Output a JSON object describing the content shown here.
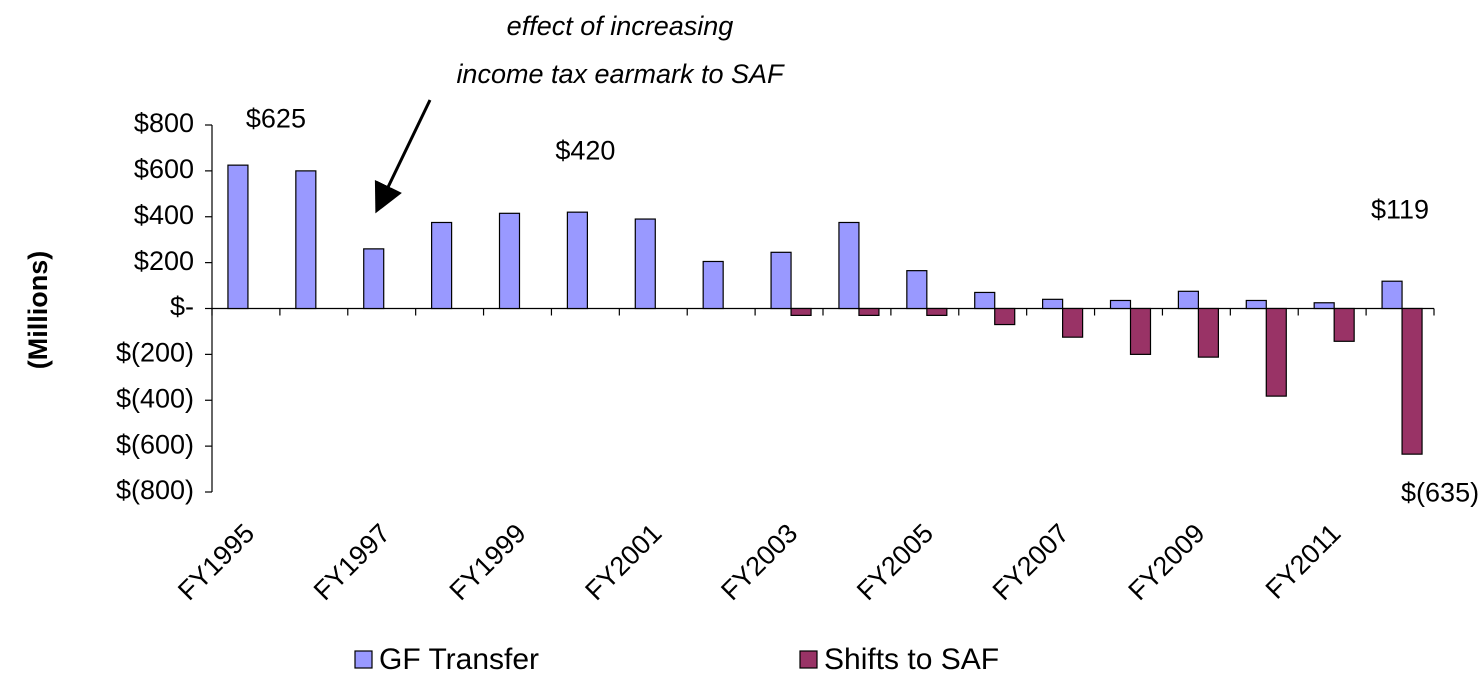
{
  "chart_data": {
    "type": "bar",
    "ylabel": "(Millions)",
    "annotation": [
      "effect of increasing",
      "income tax earmark to SAF"
    ],
    "categories": [
      "FY1995",
      null,
      "FY1997",
      null,
      "FY1999",
      null,
      "FY2001",
      null,
      "FY2003",
      null,
      "FY2005",
      null,
      "FY2007",
      null,
      "FY2009",
      null,
      "FY2011",
      null
    ],
    "series": [
      {
        "name": "GF Transfer",
        "color": "#9999ff",
        "values": [
          625,
          600,
          260,
          375,
          415,
          420,
          390,
          205,
          245,
          375,
          165,
          70,
          40,
          35,
          75,
          35,
          25,
          119
        ],
        "value_labels": [
          "$625",
          null,
          null,
          null,
          null,
          "$420",
          null,
          null,
          null,
          null,
          null,
          null,
          null,
          null,
          null,
          null,
          null,
          "$119"
        ]
      },
      {
        "name": "Shifts to SAF",
        "color": "#993366",
        "values": [
          0,
          0,
          0,
          0,
          0,
          0,
          0,
          0,
          -30,
          -30,
          -30,
          -70,
          -125,
          -200,
          -212,
          -382,
          -143,
          -635
        ],
        "value_labels": [
          null,
          null,
          null,
          null,
          null,
          null,
          null,
          null,
          null,
          null,
          null,
          null,
          null,
          null,
          null,
          null,
          null,
          "$(635)"
        ]
      }
    ],
    "ylim": [
      -800,
      800
    ],
    "yticks": [
      {
        "value": 800,
        "label": "$800"
      },
      {
        "value": 600,
        "label": "$600"
      },
      {
        "value": 400,
        "label": "$400"
      },
      {
        "value": 200,
        "label": "$200"
      },
      {
        "value": 0,
        "label": "$-"
      },
      {
        "value": -200,
        "label": "$(200)"
      },
      {
        "value": -400,
        "label": "$(400)"
      },
      {
        "value": -600,
        "label": "$(600)"
      },
      {
        "value": -800,
        "label": "$(800)"
      }
    ],
    "legend": "bottom"
  }
}
